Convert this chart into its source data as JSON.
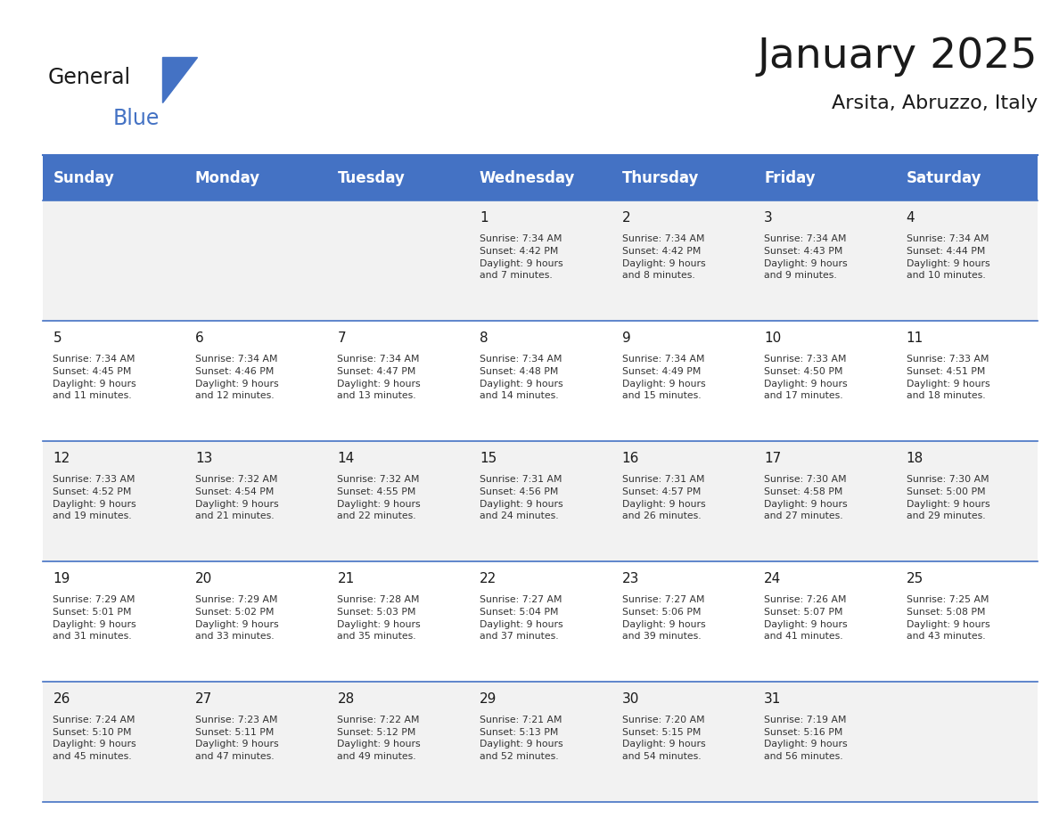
{
  "title": "January 2025",
  "subtitle": "Arsita, Abruzzo, Italy",
  "days_of_week": [
    "Sunday",
    "Monday",
    "Tuesday",
    "Wednesday",
    "Thursday",
    "Friday",
    "Saturday"
  ],
  "header_bg_color": "#4472C4",
  "header_text_color": "#FFFFFF",
  "cell_bg_even": "#F2F2F2",
  "cell_bg_odd": "#FFFFFF",
  "row_line_color": "#4472C4",
  "title_color": "#1a1a1a",
  "subtitle_color": "#1a1a1a",
  "cell_text_color": "#333333",
  "day_number_color": "#1a1a1a",
  "calendar_data": [
    [
      {
        "day": null,
        "info": ""
      },
      {
        "day": null,
        "info": ""
      },
      {
        "day": null,
        "info": ""
      },
      {
        "day": 1,
        "info": "Sunrise: 7:34 AM\nSunset: 4:42 PM\nDaylight: 9 hours\nand 7 minutes."
      },
      {
        "day": 2,
        "info": "Sunrise: 7:34 AM\nSunset: 4:42 PM\nDaylight: 9 hours\nand 8 minutes."
      },
      {
        "day": 3,
        "info": "Sunrise: 7:34 AM\nSunset: 4:43 PM\nDaylight: 9 hours\nand 9 minutes."
      },
      {
        "day": 4,
        "info": "Sunrise: 7:34 AM\nSunset: 4:44 PM\nDaylight: 9 hours\nand 10 minutes."
      }
    ],
    [
      {
        "day": 5,
        "info": "Sunrise: 7:34 AM\nSunset: 4:45 PM\nDaylight: 9 hours\nand 11 minutes."
      },
      {
        "day": 6,
        "info": "Sunrise: 7:34 AM\nSunset: 4:46 PM\nDaylight: 9 hours\nand 12 minutes."
      },
      {
        "day": 7,
        "info": "Sunrise: 7:34 AM\nSunset: 4:47 PM\nDaylight: 9 hours\nand 13 minutes."
      },
      {
        "day": 8,
        "info": "Sunrise: 7:34 AM\nSunset: 4:48 PM\nDaylight: 9 hours\nand 14 minutes."
      },
      {
        "day": 9,
        "info": "Sunrise: 7:34 AM\nSunset: 4:49 PM\nDaylight: 9 hours\nand 15 minutes."
      },
      {
        "day": 10,
        "info": "Sunrise: 7:33 AM\nSunset: 4:50 PM\nDaylight: 9 hours\nand 17 minutes."
      },
      {
        "day": 11,
        "info": "Sunrise: 7:33 AM\nSunset: 4:51 PM\nDaylight: 9 hours\nand 18 minutes."
      }
    ],
    [
      {
        "day": 12,
        "info": "Sunrise: 7:33 AM\nSunset: 4:52 PM\nDaylight: 9 hours\nand 19 minutes."
      },
      {
        "day": 13,
        "info": "Sunrise: 7:32 AM\nSunset: 4:54 PM\nDaylight: 9 hours\nand 21 minutes."
      },
      {
        "day": 14,
        "info": "Sunrise: 7:32 AM\nSunset: 4:55 PM\nDaylight: 9 hours\nand 22 minutes."
      },
      {
        "day": 15,
        "info": "Sunrise: 7:31 AM\nSunset: 4:56 PM\nDaylight: 9 hours\nand 24 minutes."
      },
      {
        "day": 16,
        "info": "Sunrise: 7:31 AM\nSunset: 4:57 PM\nDaylight: 9 hours\nand 26 minutes."
      },
      {
        "day": 17,
        "info": "Sunrise: 7:30 AM\nSunset: 4:58 PM\nDaylight: 9 hours\nand 27 minutes."
      },
      {
        "day": 18,
        "info": "Sunrise: 7:30 AM\nSunset: 5:00 PM\nDaylight: 9 hours\nand 29 minutes."
      }
    ],
    [
      {
        "day": 19,
        "info": "Sunrise: 7:29 AM\nSunset: 5:01 PM\nDaylight: 9 hours\nand 31 minutes."
      },
      {
        "day": 20,
        "info": "Sunrise: 7:29 AM\nSunset: 5:02 PM\nDaylight: 9 hours\nand 33 minutes."
      },
      {
        "day": 21,
        "info": "Sunrise: 7:28 AM\nSunset: 5:03 PM\nDaylight: 9 hours\nand 35 minutes."
      },
      {
        "day": 22,
        "info": "Sunrise: 7:27 AM\nSunset: 5:04 PM\nDaylight: 9 hours\nand 37 minutes."
      },
      {
        "day": 23,
        "info": "Sunrise: 7:27 AM\nSunset: 5:06 PM\nDaylight: 9 hours\nand 39 minutes."
      },
      {
        "day": 24,
        "info": "Sunrise: 7:26 AM\nSunset: 5:07 PM\nDaylight: 9 hours\nand 41 minutes."
      },
      {
        "day": 25,
        "info": "Sunrise: 7:25 AM\nSunset: 5:08 PM\nDaylight: 9 hours\nand 43 minutes."
      }
    ],
    [
      {
        "day": 26,
        "info": "Sunrise: 7:24 AM\nSunset: 5:10 PM\nDaylight: 9 hours\nand 45 minutes."
      },
      {
        "day": 27,
        "info": "Sunrise: 7:23 AM\nSunset: 5:11 PM\nDaylight: 9 hours\nand 47 minutes."
      },
      {
        "day": 28,
        "info": "Sunrise: 7:22 AM\nSunset: 5:12 PM\nDaylight: 9 hours\nand 49 minutes."
      },
      {
        "day": 29,
        "info": "Sunrise: 7:21 AM\nSunset: 5:13 PM\nDaylight: 9 hours\nand 52 minutes."
      },
      {
        "day": 30,
        "info": "Sunrise: 7:20 AM\nSunset: 5:15 PM\nDaylight: 9 hours\nand 54 minutes."
      },
      {
        "day": 31,
        "info": "Sunrise: 7:19 AM\nSunset: 5:16 PM\nDaylight: 9 hours\nand 56 minutes."
      },
      {
        "day": null,
        "info": ""
      }
    ]
  ],
  "logo_text_general": "General",
  "logo_text_blue": "Blue",
  "logo_triangle_color": "#4472C4",
  "logo_general_color": "#1a1a1a",
  "logo_blue_color": "#4472C4"
}
